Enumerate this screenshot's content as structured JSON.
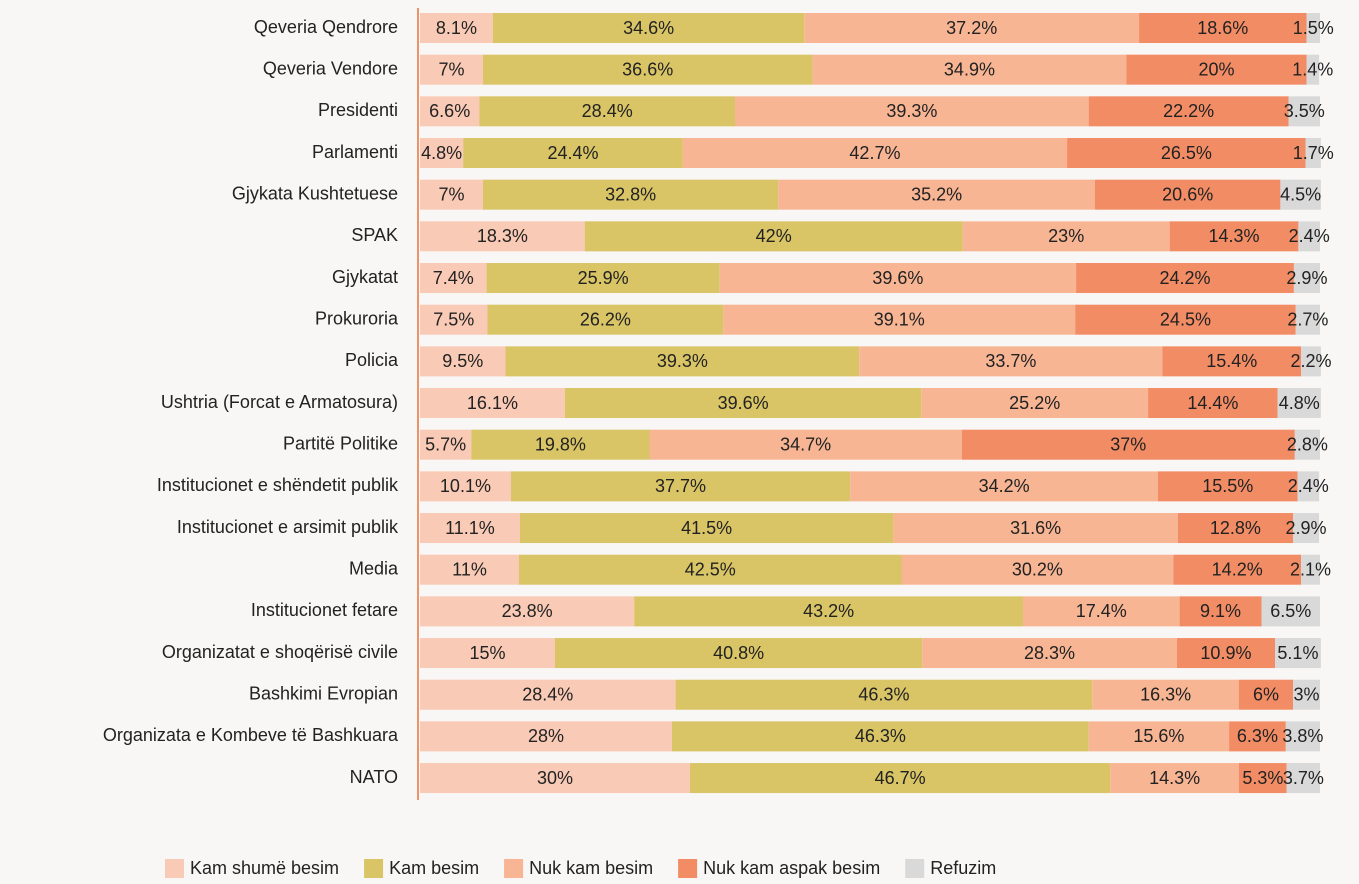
{
  "chart_data": {
    "type": "bar",
    "orientation": "horizontal",
    "stacked": true,
    "categories": [
      "Qeveria Qendrore",
      "Qeveria Vendore",
      "Presidenti",
      "Parlamenti",
      "Gjykata Kushtetuese",
      "SPAK",
      "Gjykatat",
      "Prokuroria",
      "Policia",
      "Ushtria (Forcat e Armatosura)",
      "Partitë Politike",
      "Institucionet e shëndetit publik",
      "Institucionet e arsimit publik",
      "Media",
      "Institucionet fetare ",
      "Organizatat e shoqërisë civile",
      "Bashkimi Evropian",
      "Organizata e Kombeve të Bashkuara",
      "NATO"
    ],
    "xlim": [
      0,
      100
    ],
    "legend": "bottom",
    "series": [
      {
        "name": "Kam shumë besim",
        "color": "#f9cab5",
        "values": [
          8.1,
          7,
          6.6,
          4.8,
          7,
          18.3,
          7.4,
          7.5,
          9.5,
          16.1,
          5.7,
          10.1,
          11.1,
          11,
          23.8,
          15,
          28.4,
          28,
          30
        ],
        "value_labels": [
          "8.1%",
          "7%",
          "6.6%",
          "4.8%",
          "7%",
          "18.3%",
          "7.4%",
          "7.5%",
          "9.5%",
          "16.1%",
          "5.7%",
          "10.1%",
          "11.1%",
          "11%",
          "23.8%",
          "15%",
          "28.4%",
          "28%",
          "30%"
        ]
      },
      {
        "name": "Kam besim",
        "color": "#d9c466",
        "values": [
          34.6,
          36.6,
          28.4,
          24.4,
          32.8,
          42,
          25.9,
          26.2,
          39.3,
          39.6,
          19.8,
          37.7,
          41.5,
          42.5,
          43.2,
          40.8,
          46.3,
          46.3,
          46.7
        ],
        "value_labels": [
          "34.6%",
          "36.6%",
          "28.4%",
          "24.4%",
          "32.8%",
          "42%",
          "25.9%",
          "26.2%",
          "39.3%",
          "39.6%",
          "19.8%",
          "37.7%",
          "41.5%",
          "42.5%",
          "43.2%",
          "40.8%",
          "46.3%",
          "46.3%",
          "46.7%"
        ]
      },
      {
        "name": "Nuk kam besim",
        "color": "#f7b594",
        "values": [
          37.2,
          34.9,
          39.3,
          42.7,
          35.2,
          23,
          39.6,
          39.1,
          33.7,
          25.2,
          34.7,
          34.2,
          31.6,
          30.2,
          17.4,
          28.3,
          16.3,
          15.6,
          14.3
        ],
        "value_labels": [
          "37.2%",
          "34.9%",
          "39.3%",
          "42.7%",
          "35.2%",
          "23%",
          "39.6%",
          "39.1%",
          "33.7%",
          "25.2%",
          "34.7%",
          "34.2%",
          "31.6%",
          "30.2%",
          "17.4%",
          "28.3%",
          "16.3%",
          "15.6%",
          "14.3%"
        ]
      },
      {
        "name": "Nuk kam aspak besim",
        "color": "#f28c64",
        "values": [
          18.6,
          20,
          22.2,
          26.5,
          20.6,
          14.3,
          24.2,
          24.5,
          15.4,
          14.4,
          37,
          15.5,
          12.8,
          14.2,
          9.1,
          10.9,
          6,
          6.3,
          5.3
        ],
        "value_labels": [
          "18.6%",
          "20%",
          "22.2%",
          "26.5%",
          "20.6%",
          "14.3%",
          "24.2%",
          "24.5%",
          "15.4%",
          "14.4%",
          "37%",
          "15.5%",
          "12.8%",
          "14.2%",
          "9.1%",
          "10.9%",
          "6%",
          "6.3%",
          "5.3%"
        ]
      },
      {
        "name": "Refuzim",
        "color": "#d9d9d9",
        "values": [
          1.5,
          1.4,
          3.5,
          1.7,
          4.5,
          2.4,
          2.9,
          2.7,
          2.2,
          4.8,
          2.8,
          2.4,
          2.9,
          2.1,
          6.5,
          5.1,
          3,
          3.8,
          3.7
        ],
        "value_labels": [
          "1.5%",
          "1.4%",
          "3.5%",
          "1.7%",
          "4.5%",
          "2.4%",
          "2.9%",
          "2.7%",
          "2.2%",
          "4.8%",
          "2.8%",
          "2.4%",
          "2.9%",
          "2.1%",
          "6.5%",
          "5.1%",
          "3%",
          "3.8%",
          "3.7%"
        ]
      }
    ]
  }
}
